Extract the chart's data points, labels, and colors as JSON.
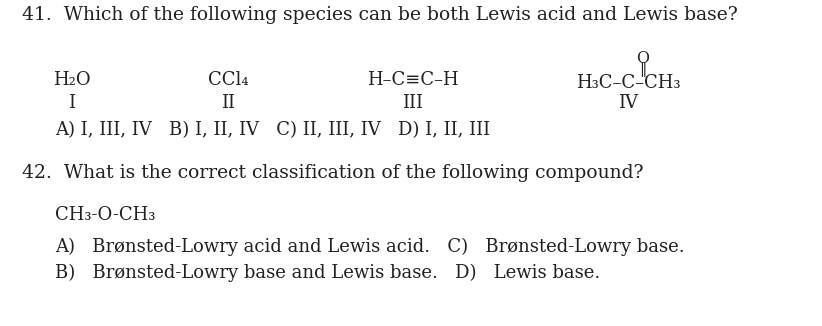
{
  "bg_color": "#ffffff",
  "text_color": "#231f20",
  "q41_num": "41.",
  "q41_body": "  Which of the following species can be both Lewis acid and Lewis base?",
  "sp1": "H₂O",
  "sp2": "CCl₄",
  "sp3": "H–C≡C–H",
  "sp4_main": "H₃C–C–CH₃",
  "sp4_o": "O",
  "sp4_dbl": "‖",
  "rom1": "I",
  "rom2": "II",
  "rom3": "III",
  "rom4": "IV",
  "ans41": "A) I, III, IV   B) I, II, IV   C) II, III, IV   D) I, II, III",
  "q42_num": "42.",
  "q42_body": "  What is the correct classification of the following compound?",
  "compound": "CH₃-O-CH₃",
  "ansA42": "A)   Brønsted-Lowry acid and Lewis acid.   C)   Brønsted-Lowry base.",
  "ansB42": "B)   Brønsted-Lowry base and Lewis base.   D)   Lewis base.",
  "fs_main": 13.5,
  "fs_chem": 13.0,
  "fs_small": 11.5
}
